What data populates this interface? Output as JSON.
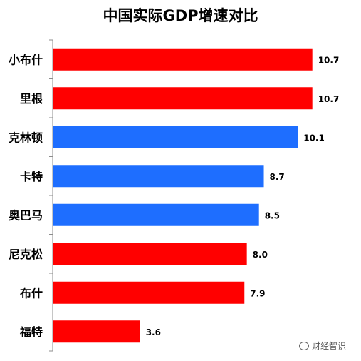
{
  "chart_data": {
    "type": "bar",
    "orientation": "horizontal",
    "title": "中国实际GDP增速对比",
    "categories": [
      "小布什",
      "里根",
      "克林顿",
      "卡特",
      "奥巴马",
      "尼克松",
      "布什",
      "福特"
    ],
    "values": [
      10.7,
      10.7,
      10.1,
      8.7,
      8.5,
      8.0,
      7.9,
      3.6
    ],
    "data_labels": [
      "10.7",
      "10.7",
      "10.1",
      "8.7",
      "8.5",
      "8.0",
      "7.9",
      "3.6"
    ],
    "colors": [
      "#ff0000",
      "#ff0000",
      "#1e6eff",
      "#1e6eff",
      "#1e6eff",
      "#ff0000",
      "#ff0000",
      "#ff0000"
    ],
    "xlim": [
      0,
      12
    ],
    "grid": false,
    "legend": "none"
  },
  "watermark": "财经智识"
}
